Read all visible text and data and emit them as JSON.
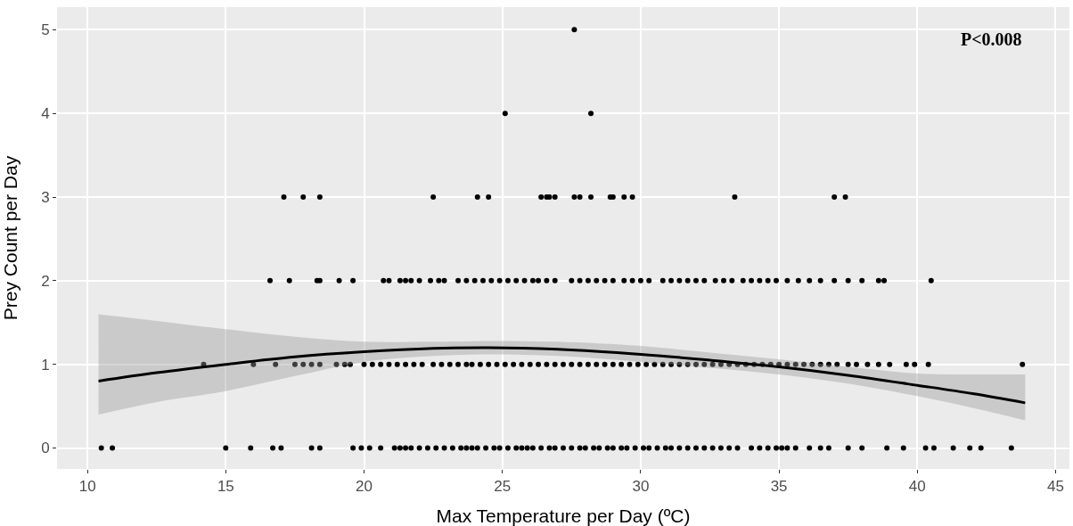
{
  "chart_data": {
    "type": "scatter",
    "xlabel": "Max Temperature per Day (ºC)",
    "ylabel": "Prey Count per Day",
    "annotations": [
      "P<0.008"
    ],
    "xlim": [
      8.9,
      45.5
    ],
    "ylim": [
      -0.25,
      5.27
    ],
    "xticks": [
      10,
      15,
      20,
      25,
      30,
      35,
      40,
      45
    ],
    "yticks": [
      0,
      1,
      2,
      3,
      4,
      5
    ],
    "grid": true,
    "marker": "circle",
    "series": [
      {
        "color": "#000000",
        "x": [
          10.5,
          10.9,
          15.0,
          15.9,
          16.7,
          17.0,
          18.1,
          18.4,
          19.6,
          19.9,
          20.2,
          20.6,
          21.1,
          21.3,
          21.5,
          21.7,
          22.0,
          22.3,
          22.6,
          22.9,
          23.2,
          23.5,
          23.7,
          23.9,
          24.1,
          24.4,
          24.7,
          24.9,
          25.2,
          25.5,
          25.7,
          25.9,
          26.1,
          26.4,
          26.7,
          26.9,
          27.2,
          27.5,
          27.8,
          28.0,
          28.3,
          28.5,
          28.8,
          29.0,
          29.3,
          29.5,
          29.8,
          30.1,
          30.3,
          30.6,
          30.9,
          31.1,
          31.4,
          31.7,
          32.0,
          32.3,
          32.6,
          32.9,
          33.2,
          33.5,
          34.0,
          34.3,
          34.6,
          34.9,
          35.1,
          35.3,
          35.6,
          36.1,
          36.5,
          36.8,
          37.5,
          38.0,
          38.9,
          39.5,
          40.3,
          40.6,
          41.3,
          41.9,
          42.3,
          43.4
        ],
        "values": [
          0,
          0,
          0,
          0,
          0,
          0,
          0,
          0,
          0,
          0,
          0,
          0,
          0,
          0,
          0,
          0,
          0,
          0,
          0,
          0,
          0,
          0,
          0,
          0,
          0,
          0,
          0,
          0,
          0,
          0,
          0,
          0,
          0,
          0,
          0,
          0,
          0,
          0,
          0,
          0,
          0,
          0,
          0,
          0,
          0,
          0,
          0,
          0,
          0,
          0,
          0,
          0,
          0,
          0,
          0,
          0,
          0,
          0,
          0,
          0,
          0,
          0,
          0,
          0,
          0,
          0,
          0,
          0,
          0,
          0,
          0,
          0,
          0,
          0,
          0,
          0,
          0,
          0,
          0,
          0
        ]
      },
      {
        "color": "#000000",
        "x": [
          14.2,
          16.0,
          16.8,
          17.5,
          17.8,
          18.1,
          18.4,
          19.0,
          19.3,
          19.5,
          20.0,
          20.3,
          20.6,
          20.9,
          21.2,
          21.5,
          21.8,
          22.1,
          22.5,
          22.8,
          23.1,
          23.4,
          23.7,
          23.9,
          24.2,
          24.5,
          24.8,
          25.1,
          25.4,
          25.7,
          26.0,
          26.3,
          26.6,
          26.9,
          27.2,
          27.5,
          27.8,
          28.1,
          28.4,
          28.7,
          29.0,
          29.3,
          29.6,
          29.9,
          30.2,
          30.5,
          30.8,
          31.1,
          31.4,
          31.7,
          32.0,
          32.3,
          32.6,
          32.9,
          33.2,
          33.5,
          33.8,
          34.1,
          34.4,
          34.7,
          35.0,
          35.3,
          35.6,
          35.9,
          36.2,
          36.5,
          36.8,
          37.1,
          37.5,
          37.8,
          38.2,
          38.6,
          39.0,
          39.6,
          39.9,
          40.4,
          43.8
        ],
        "values": [
          1,
          1,
          1,
          1,
          1,
          1,
          1,
          1,
          1,
          1,
          1,
          1,
          1,
          1,
          1,
          1,
          1,
          1,
          1,
          1,
          1,
          1,
          1,
          1,
          1,
          1,
          1,
          1,
          1,
          1,
          1,
          1,
          1,
          1,
          1,
          1,
          1,
          1,
          1,
          1,
          1,
          1,
          1,
          1,
          1,
          1,
          1,
          1,
          1,
          1,
          1,
          1,
          1,
          1,
          1,
          1,
          1,
          1,
          1,
          1,
          1,
          1,
          1,
          1,
          1,
          1,
          1,
          1,
          1,
          1,
          1,
          1,
          1,
          1,
          1,
          1,
          1
        ]
      },
      {
        "color": "#000000",
        "x": [
          16.6,
          17.3,
          18.3,
          18.4,
          19.1,
          19.6,
          20.7,
          20.9,
          21.3,
          21.5,
          21.7,
          22.0,
          22.4,
          22.7,
          22.9,
          23.4,
          23.7,
          24.0,
          24.3,
          24.6,
          24.9,
          25.2,
          25.5,
          25.8,
          26.1,
          26.3,
          26.6,
          26.9,
          27.5,
          27.8,
          28.1,
          28.4,
          28.7,
          29.0,
          29.4,
          29.7,
          30.0,
          30.3,
          30.8,
          31.1,
          31.4,
          31.7,
          32.0,
          32.3,
          32.7,
          33.0,
          33.3,
          33.7,
          34.0,
          34.3,
          34.6,
          34.9,
          35.3,
          35.7,
          36.1,
          36.5,
          37.0,
          37.5,
          38.0,
          38.6,
          38.8,
          40.5
        ],
        "values": [
          2,
          2,
          2,
          2,
          2,
          2,
          2,
          2,
          2,
          2,
          2,
          2,
          2,
          2,
          2,
          2,
          2,
          2,
          2,
          2,
          2,
          2,
          2,
          2,
          2,
          2,
          2,
          2,
          2,
          2,
          2,
          2,
          2,
          2,
          2,
          2,
          2,
          2,
          2,
          2,
          2,
          2,
          2,
          2,
          2,
          2,
          2,
          2,
          2,
          2,
          2,
          2,
          2,
          2,
          2,
          2,
          2,
          2,
          2,
          2,
          2,
          2
        ]
      },
      {
        "color": "#000000",
        "x": [
          17.1,
          17.8,
          18.4,
          22.5,
          24.1,
          24.5,
          26.4,
          26.6,
          26.7,
          26.9,
          27.6,
          27.8,
          28.2,
          28.9,
          29.0,
          29.4,
          29.7,
          33.4,
          37.0,
          37.4,
          25.1,
          28.2,
          27.6
        ],
        "values": [
          3,
          3,
          3,
          3,
          3,
          3,
          3,
          3,
          3,
          3,
          3,
          3,
          3,
          3,
          3,
          3,
          3,
          3,
          3,
          3,
          4,
          4,
          5
        ]
      },
      {
        "type": "line",
        "line_style": "solid",
        "marker": "none",
        "color": "#000000",
        "x": [
          10.4,
          12.5,
          15,
          17.5,
          20,
          22.5,
          24.5,
          27,
          30,
          32.5,
          35,
          37.5,
          40,
          42,
          43.9
        ],
        "values": [
          0.8,
          0.9,
          1.0,
          1.09,
          1.15,
          1.19,
          1.2,
          1.18,
          1.12,
          1.05,
          0.97,
          0.87,
          0.75,
          0.65,
          0.54
        ],
        "lower": [
          0.4,
          0.55,
          0.68,
          0.86,
          1.03,
          1.1,
          1.12,
          1.1,
          1.03,
          0.96,
          0.88,
          0.77,
          0.62,
          0.48,
          0.33
        ],
        "upper": [
          1.6,
          1.52,
          1.42,
          1.33,
          1.27,
          1.27,
          1.28,
          1.27,
          1.22,
          1.14,
          1.06,
          0.97,
          0.89,
          0.88,
          0.88
        ]
      }
    ]
  }
}
